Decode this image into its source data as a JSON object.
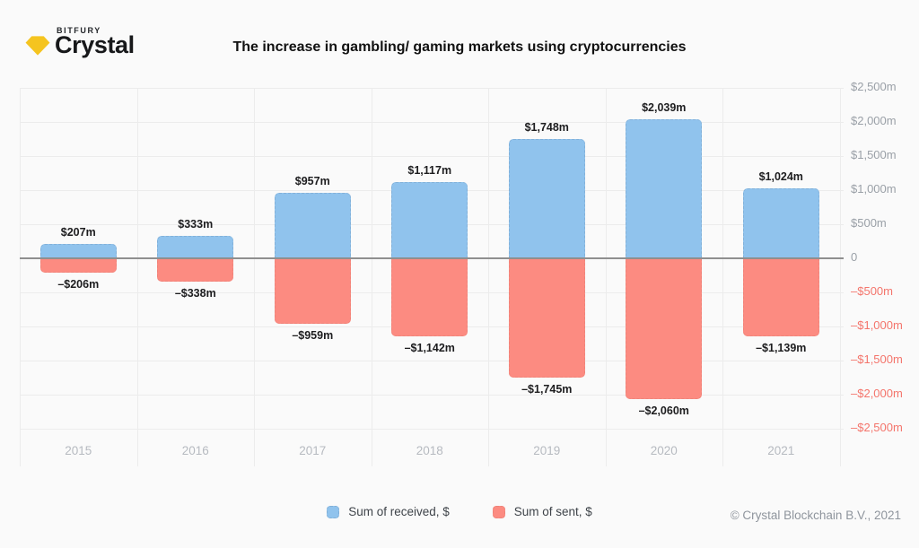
{
  "header": {
    "brand_top": "BITFURY",
    "brand_name": "Crystal",
    "title": "The increase in gambling/ gaming markets using cryptocurrencies"
  },
  "chart_data": {
    "type": "bar",
    "title": "The increase in gambling/ gaming markets using cryptocurrencies",
    "categories": [
      "2015",
      "2016",
      "2017",
      "2018",
      "2019",
      "2020",
      "2021"
    ],
    "series": [
      {
        "name": "Sum of received, $",
        "color": "#90C3ED",
        "values": [
          207,
          333,
          957,
          1117,
          1748,
          2039,
          1024
        ],
        "labels": [
          "$207m",
          "$333m",
          "$957m",
          "$1,117m",
          "$1,748m",
          "$2,039m",
          "$1,024m"
        ]
      },
      {
        "name": "Sum of sent, $",
        "color": "#FC8B81",
        "values": [
          -206,
          -338,
          -959,
          -1142,
          -1745,
          -2060,
          -1139
        ],
        "labels": [
          "–$206m",
          "–$338m",
          "–$959m",
          "–$1,142m",
          "–$1,745m",
          "–$2,060m",
          "–$1,139m"
        ]
      }
    ],
    "xlabel": "",
    "ylabel": "",
    "ylim": [
      -2500,
      2500
    ],
    "grid": true,
    "legend_position": "bottom",
    "y_ticks": [
      "$2,500m",
      "$2,000m",
      "$1,500m",
      "$1,000m",
      "$500m",
      "0",
      "–$500m",
      "–$1,000m",
      "–$1,500m",
      "–$2,000m",
      "–$2,500m"
    ]
  },
  "legend": {
    "items": [
      {
        "label": "Sum of received, $",
        "color": "#90C3ED"
      },
      {
        "label": "Sum of sent, $",
        "color": "#FC8B81"
      }
    ]
  },
  "footer": {
    "copyright": "© Crystal Blockchain B.V., 2021"
  },
  "colors": {
    "background": "#FAFAFA",
    "received_bar": "#90C3ED",
    "sent_bar": "#FC8B81",
    "gem_gold": "#F5C41F",
    "positive_tick_text": "#9AA0A7",
    "negative_tick_text": "#F4756C",
    "gridline": "#ECECEC",
    "zero_line": "#8F8F8F",
    "data_label_text": "#1D1D1F",
    "year_label_text": "#B6BAC0"
  }
}
